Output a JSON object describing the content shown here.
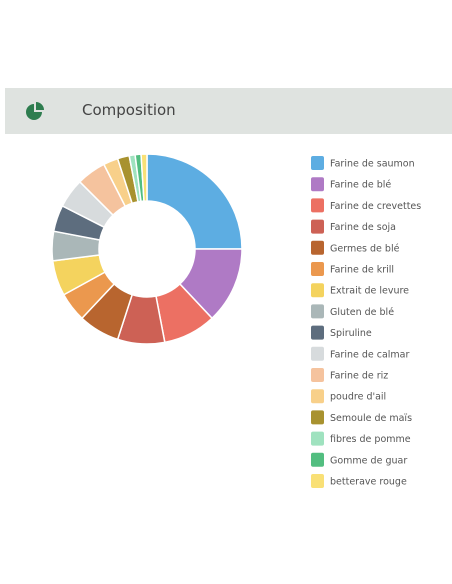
{
  "header": {
    "title": "Composition"
  },
  "chart_data": {
    "type": "donut",
    "categories": [
      "Farine de saumon",
      "Farine de blé",
      "Farine de crevettes",
      "Farine de soja",
      "Germes de blé",
      "Farine de krill",
      "Extrait de levure",
      "Gluten de blé",
      "Spiruline",
      "Farine de calmar",
      "Farine de riz",
      "poudre d'ail",
      "Semoule de maïs",
      "fibres de pomme",
      "Gomme de guar",
      "betterave rouge"
    ],
    "values": [
      25,
      13,
      9,
      8,
      7,
      5,
      6,
      5,
      4.5,
      5,
      5,
      2.5,
      2,
      1,
      1,
      1
    ],
    "colors": [
      "#5dade2",
      "#af7ac5",
      "#ec7063",
      "#cd6155",
      "#b8652f",
      "#eb984e",
      "#f4d35e",
      "#aab7b8",
      "#5d6d7e",
      "#d7dbdd",
      "#f5c39e",
      "#f8d08a",
      "#a8922f",
      "#9fe2bf",
      "#52be80",
      "#f9e076"
    ]
  }
}
